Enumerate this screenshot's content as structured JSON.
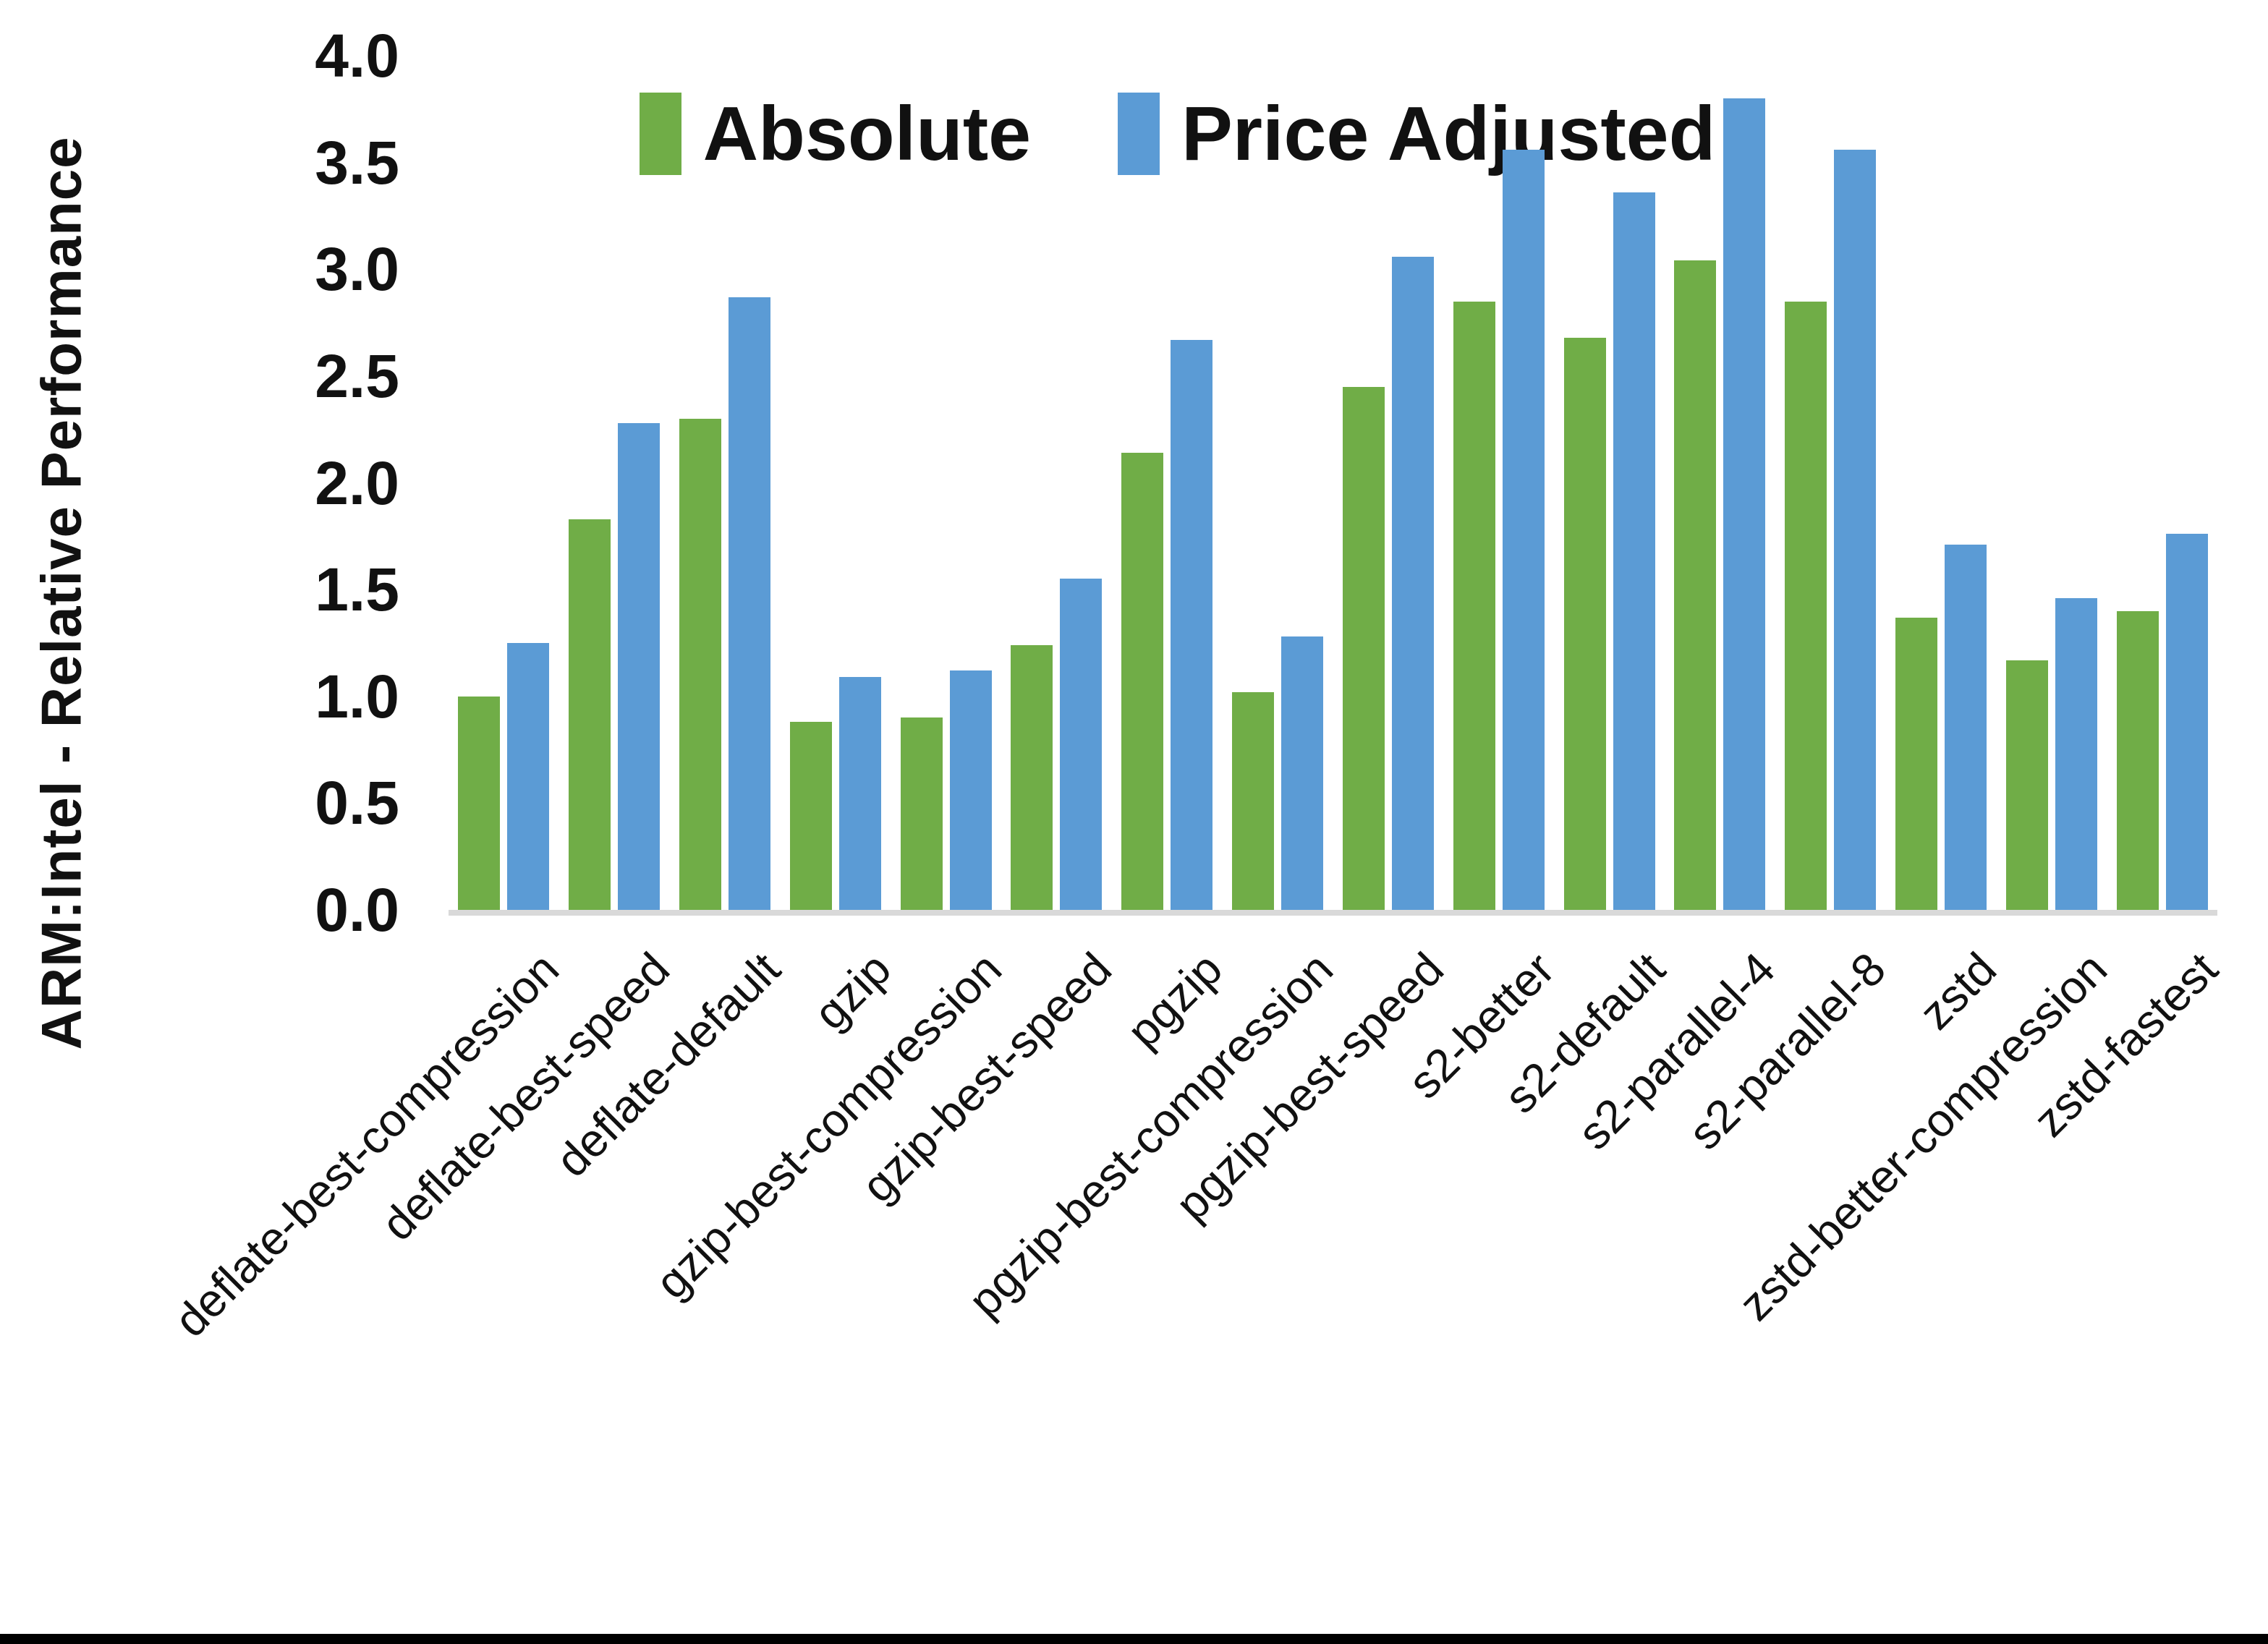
{
  "figure": {
    "background": "#FFFFFF",
    "bottom_border_color": "#000000",
    "text_color": "#111111"
  },
  "legend": {
    "position": "top-center",
    "items": [
      {
        "label": "Absolute",
        "color": "#70AD47"
      },
      {
        "label": "Price Adjusted",
        "color": "#5B9BD5"
      }
    ]
  },
  "y_axis": {
    "title": "ARM:Intel - Relative Performance",
    "min": 0,
    "max": 4,
    "tick_step": 0.5,
    "tick_labels": [
      "4.0",
      "3.5",
      "3.0",
      "2.5",
      "2.0",
      "1.5",
      "1.0",
      "0.5",
      "0.0"
    ],
    "axis_line_color": "#D9D9D9"
  },
  "chart_data": {
    "type": "bar",
    "title": "",
    "xlabel": "",
    "ylabel": "ARM:Intel - Relative Performance",
    "ylim": [
      0,
      4
    ],
    "ytick_step": 0.5,
    "grid": false,
    "legend_position": "top-center",
    "categories": [
      "deflate-best-compression",
      "deflate-best-speed",
      "deflate-default",
      "gzip",
      "gzip-best-compression",
      "gzip-best-speed",
      "pgzip",
      "pgzip-best-compression",
      "pgzip-best-speed",
      "s2-better",
      "s2-default",
      "s2-parallel-4",
      "s2-parallel-8",
      "zstd",
      "zstd-better-compression",
      "zstd-fastest"
    ],
    "series": [
      {
        "name": "Absolute",
        "color": "#70AD47",
        "values": [
          1.0,
          1.83,
          2.3,
          0.88,
          0.9,
          1.24,
          2.14,
          1.02,
          2.45,
          2.85,
          2.68,
          3.04,
          2.85,
          1.37,
          1.17,
          1.4
        ]
      },
      {
        "name": "Price Adjusted",
        "color": "#5B9BD5",
        "values": [
          1.25,
          2.28,
          2.87,
          1.09,
          1.12,
          1.55,
          2.67,
          1.28,
          3.06,
          3.56,
          3.36,
          3.8,
          3.56,
          1.71,
          1.46,
          1.76
        ]
      }
    ]
  }
}
